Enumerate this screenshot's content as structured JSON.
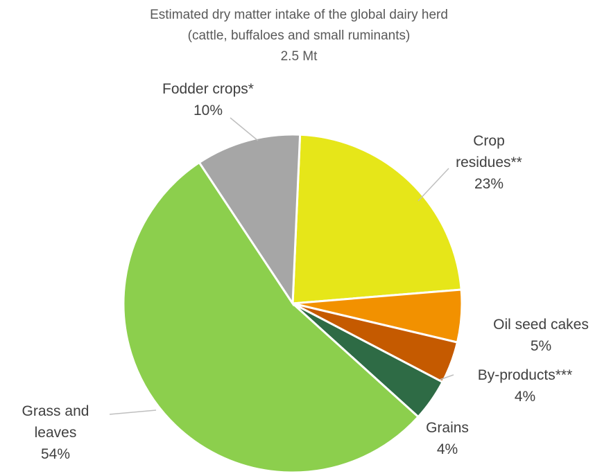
{
  "chart_data": {
    "type": "pie",
    "title_lines": [
      "Estimated dry matter intake of the global dairy herd",
      "(cattle, buffaloes and small ruminants)",
      "2.5 Mt"
    ],
    "slices": [
      {
        "key": "crop",
        "label_lines": [
          "Crop",
          "residues**"
        ],
        "pct_label": "23%",
        "value": 23,
        "color": "#e6e619"
      },
      {
        "key": "oil",
        "label_lines": [
          "Oil seed cakes"
        ],
        "pct_label": "5%",
        "value": 5,
        "color": "#f29100"
      },
      {
        "key": "byp",
        "label_lines": [
          "By-products***"
        ],
        "pct_label": "4%",
        "value": 4,
        "color": "#c55a00"
      },
      {
        "key": "grains",
        "label_lines": [
          "Grains"
        ],
        "pct_label": "4%",
        "value": 4,
        "color": "#2e6b45"
      },
      {
        "key": "grass",
        "label_lines": [
          "Grass and",
          "leaves"
        ],
        "pct_label": "54%",
        "value": 54,
        "color": "#8ccf4d"
      },
      {
        "key": "fodder",
        "label_lines": [
          "Fodder crops*"
        ],
        "pct_label": "10%",
        "value": 10,
        "color": "#a6a6a6"
      }
    ]
  }
}
